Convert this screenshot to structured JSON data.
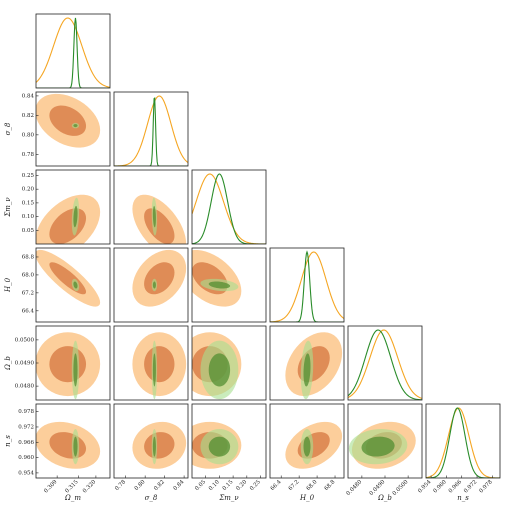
{
  "chart_data": {
    "type": "corner",
    "parameters": [
      {
        "label": "Ω_m",
        "ticks": [
          0.309,
          0.315,
          0.32
        ],
        "tick_labels": [
          "0.309",
          "0.315",
          "0.320"
        ],
        "range": [
          0.303,
          0.324
        ]
      },
      {
        "label": "σ_8",
        "ticks": [
          0.78,
          0.8,
          0.82,
          0.84
        ],
        "tick_labels": [
          "0.78",
          "0.80",
          "0.82",
          "0.84"
        ],
        "range": [
          0.768,
          0.844
        ]
      },
      {
        "label": "Σm_ν",
        "ticks": [
          0.05,
          0.1,
          0.15,
          0.2,
          0.25
        ],
        "tick_labels": [
          "0.05",
          "0.10",
          "0.15",
          "0.20",
          "0.25"
        ],
        "range": [
          0.0,
          0.27
        ]
      },
      {
        "label": "H_0",
        "ticks": [
          66.4,
          67.2,
          68.0,
          68.8
        ],
        "tick_labels": [
          "66.4",
          "67.2",
          "68.0",
          "68.8"
        ],
        "range": [
          65.9,
          69.2
        ]
      },
      {
        "label": "Ω_b",
        "ticks": [
          0.048,
          0.049,
          0.05
        ],
        "tick_labels": [
          "0.0480",
          "0.0490",
          "0.0500"
        ],
        "range": [
          0.0474,
          0.0506
        ]
      },
      {
        "label": "n_s",
        "ticks": [
          0.954,
          0.96,
          0.966,
          0.972,
          0.978
        ],
        "tick_labels": [
          "0.954",
          "0.960",
          "0.966",
          "0.972",
          "0.978"
        ],
        "range": [
          0.952,
          0.981
        ]
      }
    ],
    "series": [
      {
        "color": "#f5a623",
        "fill_outer": "#fbc58a",
        "fill_inner": "#d9804a",
        "means": [
          0.312,
          0.8145,
          0.065,
          67.85,
          0.04895,
          0.9648
        ],
        "sigmas": [
          0.004,
          0.012,
          0.05,
          0.55,
          0.0006,
          0.004
        ],
        "correlations": {
          "0-1": -0.35,
          "0-2": 0.45,
          "0-3": -0.85,
          "0-4": 0.0,
          "0-5": -0.25,
          "1-2": -0.55,
          "1-3": 0.35,
          "1-4": 0.0,
          "1-5": 0.1,
          "2-3": -0.45,
          "2-4": 0.0,
          "2-5": 0.0,
          "3-4": 0.35,
          "3-5": 0.4,
          "4-5": 0.2
        }
      },
      {
        "color": "#2a8c2a",
        "fill_outer": "#a6df8f",
        "fill_inner": "#4c8a2c",
        "means": [
          0.3142,
          0.8095,
          0.1,
          67.55,
          0.0487,
          0.9643
        ],
        "sigmas": [
          0.00045,
          0.0012,
          0.03,
          0.12,
          0.00055,
          0.003
        ],
        "correlations": {
          "0-1": 0.0,
          "0-2": 0.3,
          "0-3": -0.3,
          "0-4": 0.0,
          "0-5": 0.0,
          "1-2": -0.2,
          "1-3": 0.0,
          "1-4": 0.0,
          "1-5": 0.0,
          "2-3": -0.3,
          "2-4": 0.0,
          "2-5": 0.0,
          "3-4": 0.2,
          "3-5": 0.0,
          "4-5": 0.1
        }
      }
    ],
    "contour_levels_sigma": [
      1,
      2
    ]
  }
}
